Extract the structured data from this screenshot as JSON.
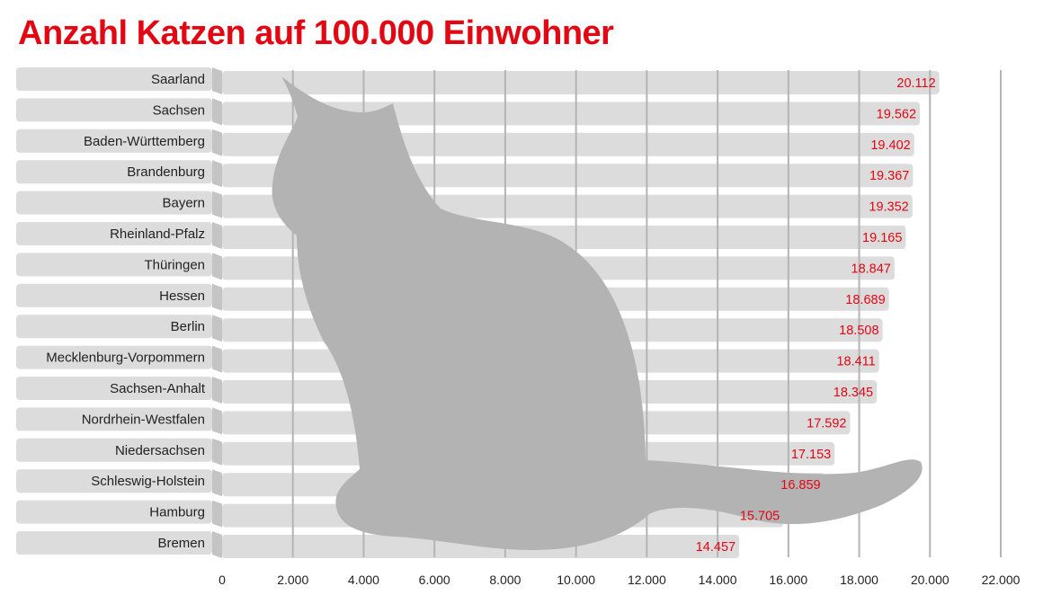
{
  "chart_data": {
    "type": "bar",
    "orientation": "horizontal",
    "title": "Anzahl Katzen auf 100.000 Einwohner",
    "categories": [
      "Saarland",
      "Sachsen",
      "Baden-Württemberg",
      "Brandenburg",
      "Bayern",
      "Rheinland-Pfalz",
      "Thüringen",
      "Hessen",
      "Berlin",
      "Mecklenburg-Vorpommern",
      "Sachsen-Anhalt",
      "Nordrhein-Westfalen",
      "Niedersachsen",
      "Schleswig-Holstein",
      "Hamburg",
      "Bremen"
    ],
    "values": [
      20112,
      19562,
      19402,
      19367,
      19352,
      19165,
      18847,
      18689,
      18508,
      18411,
      18345,
      17592,
      17153,
      16859,
      15705,
      14457
    ],
    "value_labels": [
      "20.112",
      "19.562",
      "19.402",
      "19.367",
      "19.352",
      "19.165",
      "18.847",
      "18.689",
      "18.508",
      "18.411",
      "18.345",
      "17.592",
      "17.153",
      "16.859",
      "15.705",
      "14.457"
    ],
    "xlim": [
      0,
      22000
    ],
    "xticks": [
      0,
      2000,
      4000,
      6000,
      8000,
      10000,
      12000,
      14000,
      16000,
      18000,
      20000,
      22000
    ],
    "xtick_labels": [
      "0",
      "2.000",
      "4.000",
      "6.000",
      "8.000",
      "10.000",
      "12.000",
      "14.000",
      "16.000",
      "18.000",
      "20.000",
      "22.000"
    ],
    "grid": true,
    "colors": {
      "bar": "#dcdcdc",
      "label_box": "#dcdcdc",
      "value": "#e30613",
      "title": "#e30613",
      "gridline": "#b4b4b4",
      "cat_silhouette": "#b3b3b3"
    }
  }
}
